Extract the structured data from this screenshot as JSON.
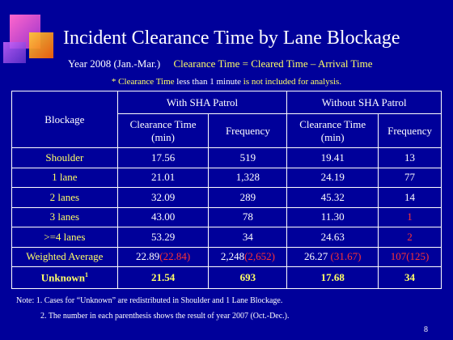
{
  "header": {
    "title": "Incident Clearance Time by Lane Blockage",
    "period": "Year 2008 (Jan.-Mar.)",
    "definition": "Clearance Time = Cleared Time – Arrival Time",
    "note_parts": [
      "* Clearance Time",
      "less than 1 minute",
      "is not included for analysis."
    ]
  },
  "table": {
    "col_blockage": "Blockage",
    "group_with": "With SHA Patrol",
    "group_without": "Without SHA Patrol",
    "sub_headers": [
      "Clearance Time (min)",
      "Frequency",
      "Clearance Time (min)",
      "Frequency"
    ],
    "rows": [
      {
        "label": "Shoulder",
        "cells": [
          "17.56",
          "519",
          "19.41",
          "13"
        ]
      },
      {
        "label": "1 lane",
        "cells": [
          "21.01",
          "1,328",
          "24.19",
          "77"
        ]
      },
      {
        "label": "2 lanes",
        "cells": [
          "32.09",
          "289",
          "45.32",
          "14"
        ]
      },
      {
        "label": "3 lanes",
        "cells": [
          "43.00",
          "78",
          "11.30",
          "1"
        ]
      },
      {
        "label": ">=4 lanes",
        "cells": [
          "53.29",
          "34",
          "24.63",
          "2"
        ]
      }
    ],
    "weighted": {
      "label": "Weighted Average",
      "cells": [
        {
          "main": "22.89",
          "prior": "(22.84)"
        },
        {
          "main": "2,248",
          "prior": "(2,652)"
        },
        {
          "main": "26.27",
          "prior": "(31.67)"
        },
        {
          "main": "107",
          "prior": "(125)"
        }
      ]
    },
    "unknown": {
      "label": "Unknown",
      "sup": "1",
      "cells": [
        "21.54",
        "693",
        "17.68",
        "34"
      ]
    }
  },
  "footnotes": [
    "Note: 1. Cases for “Unknown” are redistributed in Shoulder and 1 Lane Blockage.",
    "2. The number in each parenthesis shows the result of year 2007 (Oct.-Dec.)."
  ],
  "page_number": "8"
}
